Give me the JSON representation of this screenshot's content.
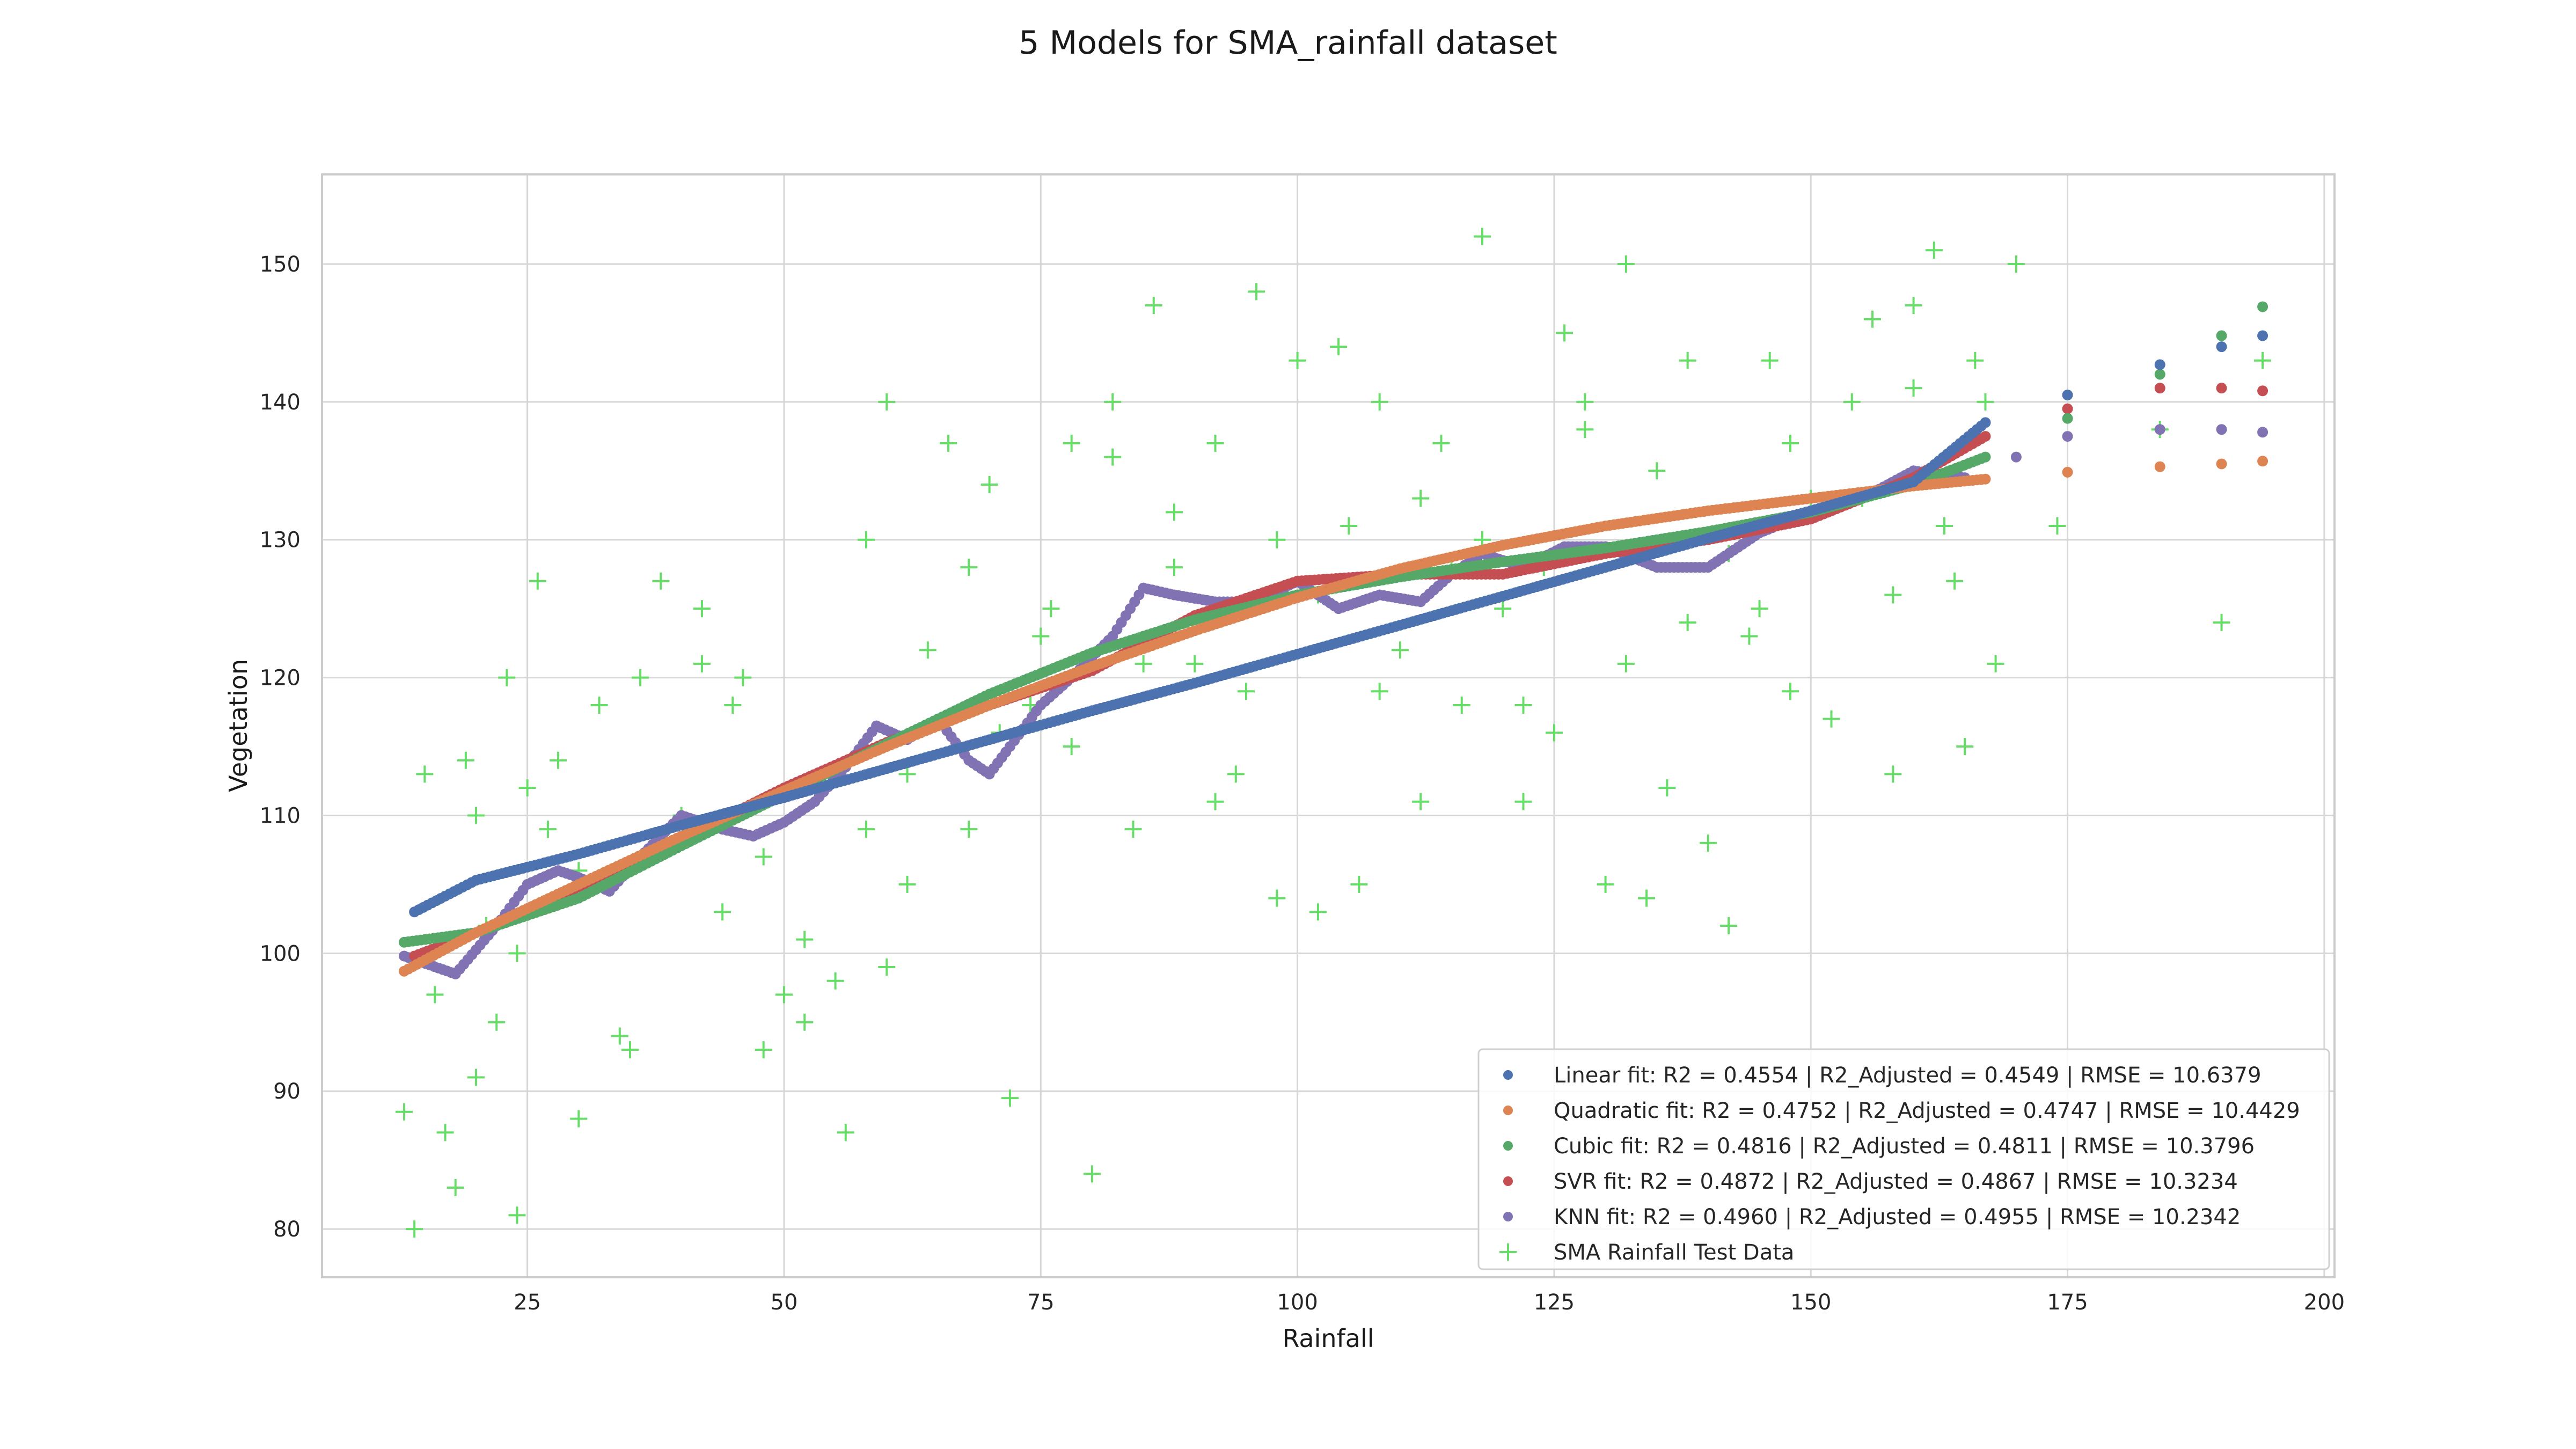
{
  "chart_data": {
    "type": "scatter",
    "title": "5 Models for SMA_rainfall dataset",
    "xlabel": "Rainfall",
    "ylabel": "Vegetation",
    "xlim": [
      5,
      201
    ],
    "ylim": [
      76.5,
      156.5
    ],
    "xticks": [
      25,
      50,
      75,
      100,
      125,
      150,
      175,
      200
    ],
    "yticks": [
      80,
      90,
      100,
      110,
      120,
      130,
      140,
      150
    ],
    "grid": true,
    "legend_position": "lower-right",
    "colors": {
      "linear": "#4c72b0",
      "quadratic": "#dd8452",
      "cubic": "#55a868",
      "svr": "#c44e52",
      "knn": "#8172b3",
      "test": "#66dd66"
    },
    "series": [
      {
        "name": "Linear fit: R2 = 0.4554 | R2_Adjusted = 0.4549 | RMSE = 10.6379",
        "style": "dots",
        "color": "#4c72b0",
        "x": [
          14,
          20,
          30,
          40,
          50,
          60,
          70,
          80,
          90,
          100,
          110,
          120,
          130,
          140,
          150,
          160,
          167,
          175,
          184,
          190,
          194
        ],
        "y": [
          103,
          105.3,
          107.2,
          109.3,
          111.3,
          113.4,
          115.5,
          117.6,
          119.6,
          121.7,
          123.8,
          125.9,
          128,
          130.1,
          132.1,
          134.2,
          138.5,
          140.5,
          142.7,
          144,
          144.8
        ]
      },
      {
        "name": "Quadratic fit: R2 = 0.4752 | R2_Adjusted = 0.4747 | RMSE = 10.4429",
        "style": "dots",
        "color": "#dd8452",
        "x": [
          13,
          20,
          30,
          40,
          50,
          60,
          70,
          80,
          90,
          100,
          110,
          120,
          130,
          140,
          150,
          160,
          167,
          175,
          184,
          190,
          194
        ],
        "y": [
          98.7,
          101.5,
          105,
          108.5,
          111.8,
          115,
          118,
          120.8,
          123.4,
          125.8,
          127.9,
          129.6,
          131,
          132.1,
          133,
          133.9,
          134.4,
          134.9,
          135.3,
          135.5,
          135.7
        ]
      },
      {
        "name": "Cubic fit: R2 = 0.4816 | R2_Adjusted = 0.4811 | RMSE = 10.3796",
        "style": "dots",
        "color": "#55a868",
        "x": [
          13,
          20,
          30,
          40,
          50,
          60,
          70,
          80,
          90,
          100,
          110,
          120,
          130,
          140,
          150,
          160,
          167,
          175,
          184,
          190,
          194
        ],
        "y": [
          100.8,
          101.5,
          104,
          107.8,
          111.5,
          115.2,
          118.8,
          121.8,
          124.2,
          126,
          127.3,
          128.4,
          129.4,
          130.6,
          132,
          134,
          136,
          138.8,
          142,
          144.8,
          146.9
        ]
      },
      {
        "name": "SVR fit: R2 = 0.4872 | R2_Adjusted = 0.4867 | RMSE = 10.3234",
        "style": "dots",
        "color": "#c44e52",
        "x": [
          14,
          20,
          30,
          40,
          50,
          60,
          70,
          80,
          90,
          100,
          110,
          120,
          130,
          140,
          150,
          160,
          167,
          175,
          184,
          190,
          194
        ],
        "y": [
          99.8,
          101.5,
          104.8,
          108.3,
          112,
          115.3,
          118,
          120.5,
          124.5,
          127,
          127.5,
          127.5,
          129,
          130,
          131.5,
          134.5,
          137.5,
          139.5,
          141,
          141,
          140.8
        ]
      },
      {
        "name": "KNN fit: R2 = 0.4960 | R2_Adjusted = 0.4955 | RMSE = 10.2342",
        "style": "dots",
        "color": "#8172b3",
        "x": [
          13,
          18,
          22,
          25,
          28,
          30,
          33,
          36,
          40,
          44,
          47,
          50,
          53,
          56,
          59,
          62,
          65,
          68,
          70,
          72,
          75,
          78,
          82,
          85,
          88,
          92,
          96,
          100,
          104,
          108,
          112,
          115,
          118,
          122,
          126,
          130,
          135,
          140,
          145,
          150,
          155,
          160,
          165,
          170,
          175,
          184,
          190,
          194
        ],
        "y": [
          99.8,
          98.5,
          102,
          105,
          106,
          105.5,
          104.5,
          107,
          110,
          109,
          108.5,
          109.5,
          111,
          113.5,
          116.5,
          115.5,
          117,
          114,
          113,
          115,
          118,
          120,
          123,
          126.5,
          126,
          125.5,
          125.5,
          127,
          125,
          126,
          125.5,
          127.5,
          129,
          128,
          129.5,
          129.5,
          128,
          128,
          130.5,
          132,
          133,
          135,
          134.5,
          136,
          137.5,
          138,
          138,
          137.8
        ]
      },
      {
        "name": "SMA Rainfall Test Data",
        "style": "plus",
        "color": "#66dd66",
        "x": [
          13,
          14,
          16,
          18,
          20,
          22,
          24,
          26,
          15,
          19,
          23,
          25,
          27,
          30,
          32,
          34,
          36,
          38,
          40,
          42,
          44,
          46,
          48,
          50,
          52,
          54,
          56,
          58,
          60,
          62,
          64,
          66,
          68,
          70,
          72,
          74,
          76,
          78,
          80,
          82,
          84,
          86,
          88,
          90,
          92,
          94,
          96,
          98,
          100,
          102,
          104,
          106,
          108,
          110,
          112,
          114,
          116,
          118,
          120,
          122,
          124,
          126,
          128,
          130,
          132,
          134,
          136,
          138,
          140,
          142,
          144,
          146,
          148,
          150,
          152,
          154,
          156,
          158,
          160,
          162,
          164,
          166,
          168,
          170,
          174,
          184,
          190,
          194,
          20,
          30,
          45,
          55,
          62,
          71,
          85,
          95,
          105,
          115,
          125,
          135,
          145,
          160,
          17,
          24,
          35,
          48,
          58,
          68,
          78,
          88,
          98,
          108,
          118,
          128,
          138,
          148,
          158,
          165,
          21,
          28,
          42,
          52,
          60,
          75,
          82,
          92,
          102,
          112,
          122,
          132,
          142,
          155,
          163,
          167
        ],
        "y": [
          88.5,
          80,
          97,
          83,
          91,
          95,
          81,
          127,
          113,
          114,
          120,
          112,
          109,
          88,
          118,
          94,
          120,
          127,
          110,
          125,
          103,
          120,
          93,
          97,
          101,
          112,
          87,
          130,
          140,
          105,
          122,
          137,
          109,
          134,
          89.5,
          118,
          125,
          137,
          84,
          136,
          109,
          147,
          128,
          121,
          137,
          113,
          148,
          130,
          143,
          103,
          144,
          105,
          140,
          122,
          133,
          137,
          118,
          152,
          125,
          111,
          128,
          145,
          138,
          105,
          150,
          104,
          112,
          143,
          108,
          102,
          123,
          143,
          119,
          133,
          117,
          140,
          146,
          113,
          147,
          151,
          127,
          143,
          121,
          150,
          131,
          138,
          124,
          143,
          110,
          106,
          118,
          98,
          113,
          116,
          121,
          119,
          131,
          128,
          116,
          135,
          125,
          141,
          87,
          100,
          93,
          107,
          109,
          128,
          115,
          132,
          104,
          119,
          130,
          140,
          124,
          137,
          126,
          115,
          102,
          114,
          121,
          95,
          99,
          123,
          140,
          111,
          126,
          111,
          118,
          121,
          129,
          133,
          131,
          140
        ]
      }
    ]
  }
}
